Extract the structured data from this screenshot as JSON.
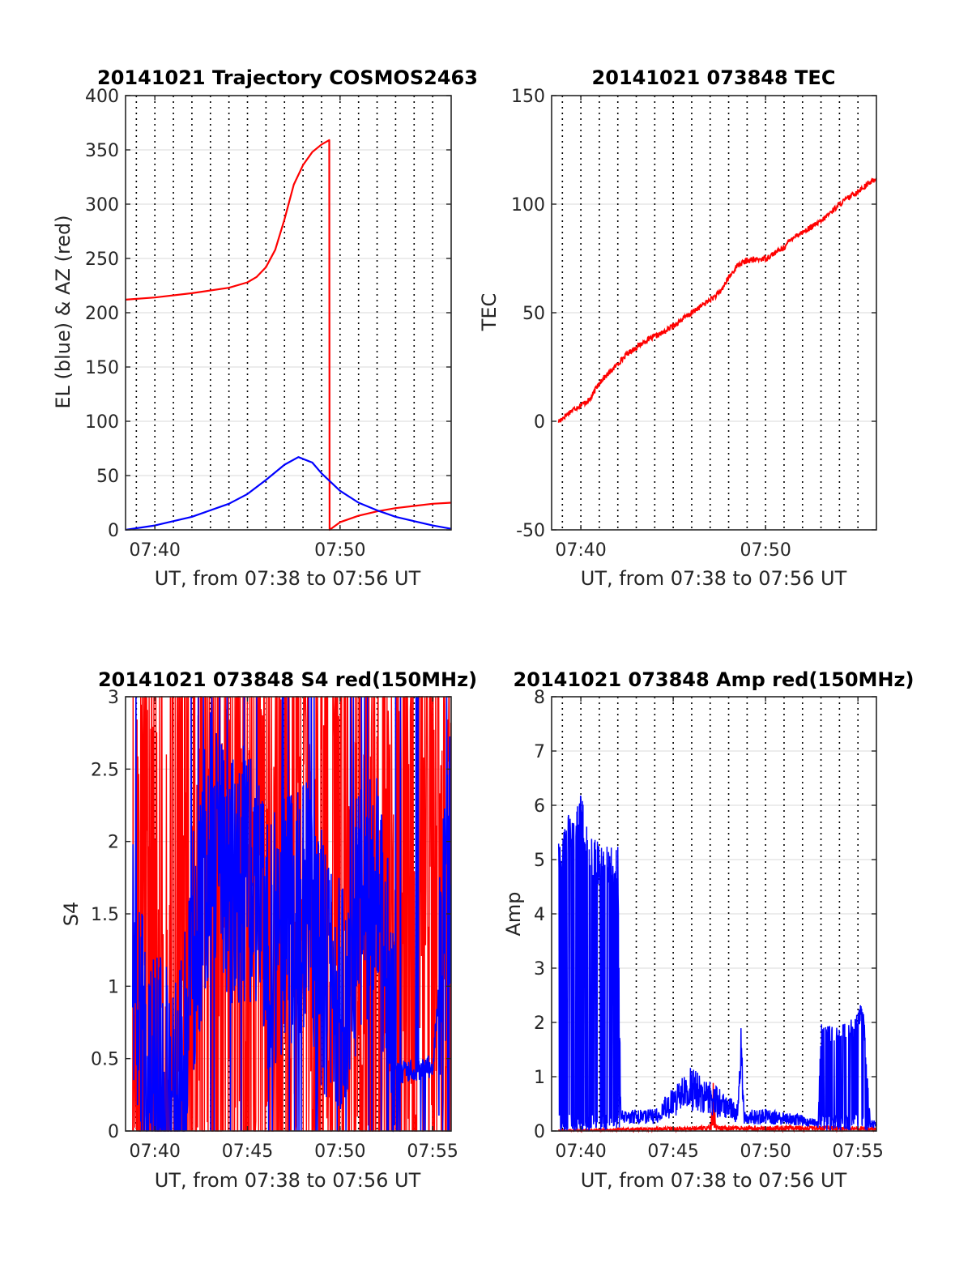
{
  "chart_data": [
    {
      "type": "line",
      "title": "20141021 Trajectory COSMOS2463",
      "xlabel": "UT, from 07:38 to 07:56 UT",
      "ylabel": "EL (blue) & AZ (red)",
      "xlim": [
        "07:38:25",
        "07:56:00"
      ],
      "ylim": [
        0,
        400
      ],
      "xticks": [
        "07:40",
        "07:50"
      ],
      "yticks": [
        "0",
        "50",
        "100",
        "150",
        "200",
        "250",
        "300",
        "350",
        "400"
      ],
      "grid": {
        "vertical_dotted_minutes": true,
        "horizontal": true
      },
      "series": [
        {
          "color": "#ff0000",
          "x": [
            "07:38:25",
            "07:40:00",
            "07:42:00",
            "07:44:00",
            "07:45:00",
            "07:45:30",
            "07:46:00",
            "07:46:30",
            "07:47:00",
            "07:47:30",
            "07:48:00",
            "07:48:30",
            "07:49:00",
            "07:49:25",
            "07:49:26",
            "07:50:00",
            "07:51:00",
            "07:52:00",
            "07:53:00",
            "07:54:00",
            "07:55:00",
            "07:56:00"
          ],
          "values": [
            212,
            214,
            218,
            223,
            228,
            233,
            242,
            258,
            286,
            318,
            336,
            348,
            355,
            359,
            0,
            7,
            13,
            17,
            20,
            22,
            24,
            25
          ]
        },
        {
          "color": "#0000ff",
          "x": [
            "07:38:25",
            "07:40:00",
            "07:42:00",
            "07:44:00",
            "07:45:00",
            "07:46:00",
            "07:47:00",
            "07:47:45",
            "07:48:30",
            "07:49:00",
            "07:50:00",
            "07:51:00",
            "07:52:00",
            "07:53:00",
            "07:54:00",
            "07:55:00",
            "07:56:00"
          ],
          "values": [
            0,
            4,
            12,
            24,
            33,
            46,
            60,
            67,
            62,
            52,
            36,
            25,
            18,
            12,
            8,
            4,
            1
          ]
        }
      ]
    },
    {
      "type": "line",
      "title": "20141021 073848 TEC",
      "xlabel": "UT, from 07:38 to 07:56 UT",
      "ylabel": "TEC",
      "xlim": [
        "07:38:25",
        "07:56:00"
      ],
      "ylim": [
        -50,
        150
      ],
      "xticks": [
        "07:40",
        "07:50"
      ],
      "yticks": [
        "-50",
        "0",
        "50",
        "100",
        "150"
      ],
      "grid": {
        "vertical_dotted_minutes": true,
        "horizontal": true
      },
      "series": [
        {
          "color": "#ff0000",
          "x": [
            "07:38:48",
            "07:39:30",
            "07:40:30",
            "07:41:00",
            "07:41:30",
            "07:42:30",
            "07:43:30",
            "07:44:30",
            "07:45:30",
            "07:46:30",
            "07:47:30",
            "07:48:00",
            "07:48:30",
            "07:49:00",
            "07:50:00",
            "07:51:00",
            "07:51:30",
            "07:52:00",
            "07:53:00",
            "07:54:00",
            "07:55:00",
            "07:56:00"
          ],
          "values": [
            0,
            5,
            10,
            18,
            22,
            31,
            37,
            41,
            47,
            53,
            59,
            66,
            72,
            74,
            75,
            80,
            85,
            87,
            92,
            100,
            106,
            112
          ]
        }
      ]
    },
    {
      "type": "line",
      "title": "20141021 073848 S4 red(150MHz)",
      "xlabel": "UT, from 07:38 to 07:56 UT",
      "ylabel": "S4",
      "xlim": [
        "07:38:25",
        "07:56:00"
      ],
      "ylim": [
        0,
        3
      ],
      "xticks": [
        "07:40",
        "07:45",
        "07:50",
        "07:55"
      ],
      "yticks": [
        "0",
        "0.5",
        "1",
        "1.5",
        "2",
        "2.5",
        "3"
      ],
      "grid": {
        "vertical_dotted_minutes": true,
        "horizontal": true
      },
      "series": [
        {
          "color": "#ff0000",
          "x_start": "07:38:48",
          "x_end": "07:56:00",
          "noise": "dense vertical spikes spanning 0 to 3 throughout"
        },
        {
          "color": "#0000ff",
          "x": [
            "07:38:48",
            "07:39:30",
            "07:40:30",
            "07:41:30",
            "07:42:00",
            "07:43:00",
            "07:44:00",
            "07:45:00",
            "07:46:00",
            "07:47:00",
            "07:48:00",
            "07:49:00",
            "07:50:00",
            "07:51:00",
            "07:52:00",
            "07:53:00",
            "07:54:00",
            "07:55:00",
            "07:56:00"
          ],
          "values": [
            1.3,
            0.4,
            0.3,
            0.3,
            1.2,
            2.0,
            1.7,
            1.8,
            1.3,
            1.4,
            1.6,
            1.2,
            0.9,
            1.5,
            1.8,
            0.4,
            0.42,
            0.45,
            2.0
          ]
        }
      ]
    },
    {
      "type": "line",
      "title": "20141021 073848 Amp red(150MHz)",
      "xlabel": "UT, from 07:38 to 07:56 UT",
      "ylabel": "Amp",
      "xlim": [
        "07:38:25",
        "07:56:00"
      ],
      "ylim": [
        0,
        8
      ],
      "xticks": [
        "07:40",
        "07:45",
        "07:50",
        "07:55"
      ],
      "yticks": [
        "0",
        "1",
        "2",
        "3",
        "4",
        "5",
        "6",
        "7",
        "8"
      ],
      "grid": {
        "vertical_dotted_minutes": true,
        "horizontal": true
      },
      "series": [
        {
          "color": "#ff0000",
          "x": [
            "07:38:48",
            "07:42:00",
            "07:47:00",
            "07:47:10",
            "07:47:20",
            "07:53:00",
            "07:56:00"
          ],
          "values": [
            0.02,
            0.05,
            0.1,
            0.95,
            0.1,
            0.1,
            0.08
          ]
        },
        {
          "color": "#0000ff",
          "x": [
            "07:38:48",
            "07:39:30",
            "07:40:00",
            "07:40:30",
            "07:41:00",
            "07:42:00",
            "07:42:10",
            "07:44:00",
            "07:45:00",
            "07:46:00",
            "07:48:30",
            "07:48:40",
            "07:48:50",
            "07:50:00",
            "07:52:00",
            "07:52:50",
            "07:53:00",
            "07:54:00",
            "07:55:00",
            "07:55:15",
            "07:55:40",
            "07:56:00"
          ],
          "values": [
            5.3,
            6.0,
            6.3,
            5.5,
            5.3,
            5.3,
            0.4,
            0.4,
            0.8,
            1.2,
            0.5,
            2.0,
            0.4,
            0.4,
            0.3,
            0.2,
            2.0,
            1.9,
            2.2,
            2.5,
            0.2,
            0.2
          ]
        }
      ]
    }
  ]
}
